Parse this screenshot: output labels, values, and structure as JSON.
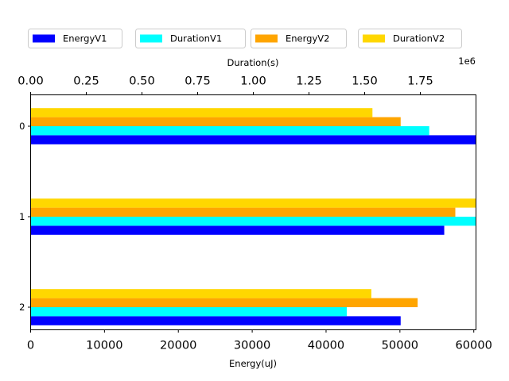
{
  "chart_data": {
    "type": "bar",
    "orientation": "horizontal",
    "categories": [
      "0",
      "1",
      "2"
    ],
    "series": [
      {
        "name": "EnergyV1",
        "axis": "bottom",
        "color": "#0000ff",
        "values": [
          60300,
          56000,
          50100
        ]
      },
      {
        "name": "DurationV1",
        "axis": "top",
        "color": "#00ffff",
        "values": [
          1790000,
          2000000,
          1420000
        ]
      },
      {
        "name": "EnergyV2",
        "axis": "bottom",
        "color": "#ffa500",
        "values": [
          50100,
          57500,
          52400
        ]
      },
      {
        "name": "DurationV2",
        "axis": "top",
        "color": "#ffd700",
        "values": [
          1535000,
          2050000,
          1530000
        ]
      }
    ],
    "xlabel": "Energy(uJ)",
    "xlim": [
      0,
      60300
    ],
    "xticks": [
      "0",
      "10000",
      "20000",
      "30000",
      "40000",
      "50000",
      "60000"
    ],
    "x2label": "Duration(s)",
    "x2lim": [
      0,
      2000000
    ],
    "x2ticks": [
      "0.00",
      "0.25",
      "0.50",
      "0.75",
      "1.00",
      "1.25",
      "1.50",
      "1.75"
    ],
    "x2_offset_label": "1e6",
    "legend_placement": "top",
    "grid": false
  }
}
